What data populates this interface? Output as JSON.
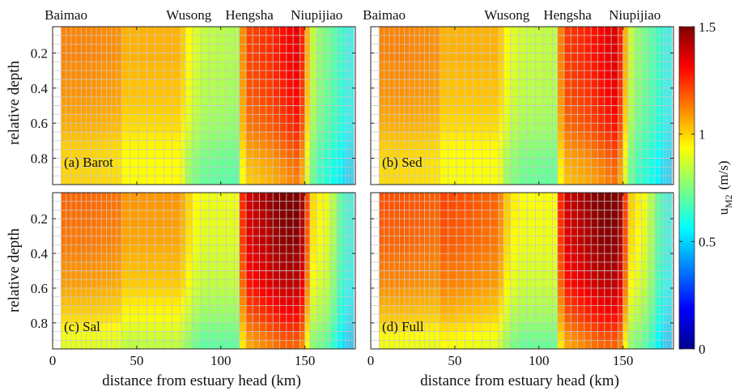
{
  "chart_data": {
    "type": "heatmap",
    "xlabel": "distance from estuary head (km)",
    "ylabel": "relative depth",
    "xlim": [
      0,
      180
    ],
    "ylim": [
      0.05,
      0.95
    ],
    "y_reversed": true,
    "x_ticks": [
      0,
      50,
      100,
      150
    ],
    "y_ticks": [
      0.2,
      0.4,
      0.6,
      0.8
    ],
    "grid": true,
    "colorbar": {
      "label_main": "u",
      "label_sub": "M2",
      "label_unit": "(m/s)",
      "range": [
        0,
        1.5
      ],
      "ticks": [
        0,
        0.5,
        1,
        1.5
      ],
      "colormap": "jet"
    },
    "stations": [
      {
        "name": "Baimao",
        "km": 8
      },
      {
        "name": "Wusong",
        "km": 81
      },
      {
        "name": "Hengsha",
        "km": 117
      },
      {
        "name": "Niupijiao",
        "km": 157
      }
    ],
    "x_bins": [
      5,
      8,
      11,
      14,
      17,
      20,
      23,
      26,
      29,
      32,
      35,
      38,
      41,
      46,
      51,
      56,
      61,
      66,
      71,
      76,
      79,
      83,
      88,
      93,
      98,
      103,
      108,
      111,
      115,
      119,
      123,
      127,
      131,
      135,
      139,
      143,
      147,
      150,
      153,
      157,
      161,
      165,
      169,
      172,
      174,
      175,
      176,
      177,
      178,
      179
    ],
    "depth_bins": [
      0.05,
      0.1,
      0.15,
      0.2,
      0.25,
      0.3,
      0.35,
      0.4,
      0.45,
      0.5,
      0.55,
      0.6,
      0.65,
      0.7,
      0.75,
      0.8,
      0.85,
      0.9,
      0.95
    ],
    "panels": [
      {
        "label": "(a) Barot",
        "profile_km": [
          5,
          20,
          40,
          42,
          76,
          80,
          88,
          110,
          114,
          130,
          138,
          146,
          150,
          153,
          158,
          165,
          170,
          175,
          178
        ],
        "profile_u": [
          1.12,
          1.12,
          1.1,
          1.05,
          1.05,
          0.95,
          0.85,
          0.82,
          1.2,
          1.25,
          1.3,
          1.35,
          1.2,
          0.9,
          0.78,
          0.72,
          0.66,
          0.6,
          0.58
        ],
        "depth_factor": [
          1,
          1,
          1,
          1,
          0.99,
          0.99,
          0.98,
          0.98,
          0.97,
          0.96,
          0.95,
          0.94,
          0.92,
          0.9,
          0.88,
          0.86,
          0.85,
          0.84
        ],
        "bottom_boost": 0.06
      },
      {
        "label": "(b) Sed",
        "profile_km": [
          5,
          20,
          40,
          42,
          76,
          80,
          88,
          110,
          114,
          130,
          138,
          146,
          150,
          153,
          158,
          165,
          170,
          175,
          178
        ],
        "profile_u": [
          1.12,
          1.12,
          1.1,
          1.05,
          1.05,
          0.95,
          0.86,
          0.84,
          1.22,
          1.27,
          1.32,
          1.37,
          1.2,
          0.9,
          0.78,
          0.72,
          0.66,
          0.6,
          0.58
        ],
        "depth_factor": [
          1,
          1,
          1,
          1,
          0.99,
          0.99,
          0.98,
          0.98,
          0.97,
          0.96,
          0.95,
          0.94,
          0.92,
          0.9,
          0.88,
          0.86,
          0.85,
          0.84
        ],
        "bottom_boost": 0.05
      },
      {
        "label": "(c) Sal",
        "profile_km": [
          5,
          20,
          40,
          42,
          76,
          80,
          88,
          110,
          114,
          130,
          138,
          146,
          150,
          153,
          158,
          165,
          170,
          175,
          178
        ],
        "profile_u": [
          1.15,
          1.15,
          1.13,
          1.08,
          1.08,
          1.0,
          0.9,
          0.9,
          1.35,
          1.45,
          1.5,
          1.5,
          1.38,
          1.0,
          0.95,
          0.88,
          0.72,
          0.62,
          0.6
        ],
        "depth_factor": [
          1.01,
          1.01,
          1.0,
          1.0,
          0.99,
          0.99,
          0.98,
          0.97,
          0.96,
          0.95,
          0.94,
          0.92,
          0.9,
          0.88,
          0.86,
          0.83,
          0.8,
          0.78
        ],
        "bottom_boost": 0.0
      },
      {
        "label": "(d) Full",
        "profile_km": [
          5,
          20,
          40,
          42,
          76,
          80,
          88,
          110,
          114,
          130,
          138,
          146,
          150,
          153,
          158,
          165,
          170,
          175,
          178
        ],
        "profile_u": [
          1.18,
          1.18,
          1.16,
          1.2,
          1.15,
          1.02,
          0.92,
          0.92,
          1.35,
          1.45,
          1.5,
          1.5,
          1.4,
          1.02,
          0.96,
          0.88,
          0.72,
          0.62,
          0.6
        ],
        "depth_factor": [
          1.01,
          1.01,
          1.0,
          1.0,
          0.99,
          0.99,
          0.98,
          0.97,
          0.96,
          0.95,
          0.94,
          0.92,
          0.9,
          0.88,
          0.86,
          0.83,
          0.8,
          0.78
        ],
        "bottom_boost": 0.0
      }
    ]
  }
}
